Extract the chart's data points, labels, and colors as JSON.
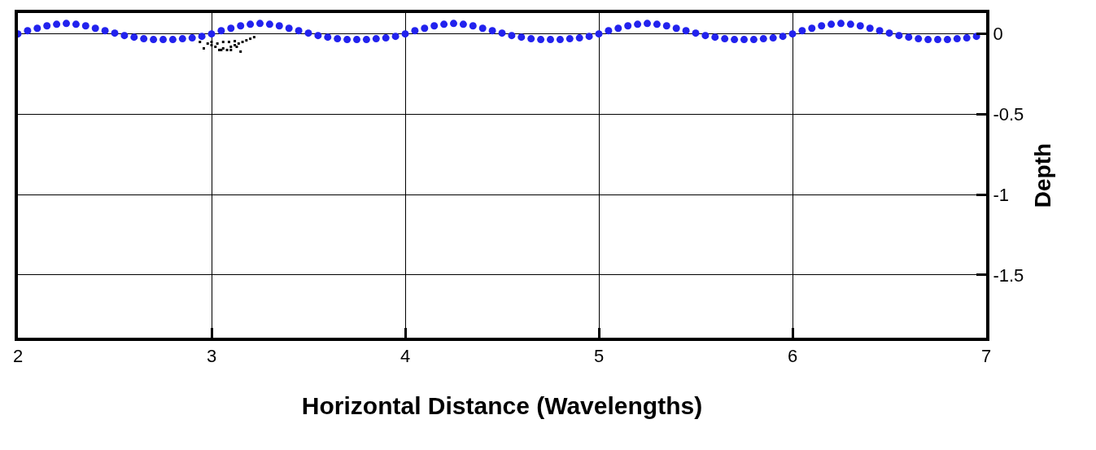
{
  "chart_data": {
    "type": "scatter",
    "xlabel": "Horizontal Distance (Wavelengths)",
    "ylabel": "Depth",
    "xlim": [
      2,
      7
    ],
    "xticks": [
      2,
      3,
      4,
      5,
      6,
      7
    ],
    "ylim": [
      -1.89,
      0.13
    ],
    "yticks": [
      -1.5,
      -1,
      -0.5,
      0
    ],
    "grid": true,
    "marker": "circle",
    "series": [
      {
        "color": "#2222ee",
        "x": [
          2.0,
          2.05,
          2.1,
          2.15,
          2.2,
          2.25,
          2.3,
          2.35,
          2.4,
          2.45,
          2.5,
          2.55,
          2.6,
          2.65,
          2.7,
          2.75,
          2.8,
          2.85,
          2.9,
          2.95,
          3.0,
          3.05,
          3.1,
          3.15,
          3.2,
          3.25,
          3.3,
          3.35,
          3.4,
          3.45,
          3.5,
          3.55,
          3.6,
          3.65,
          3.7,
          3.75,
          3.8,
          3.85,
          3.9,
          3.95,
          4.0,
          4.05,
          4.1,
          4.15,
          4.2,
          4.25,
          4.3,
          4.35,
          4.4,
          4.45,
          4.5,
          4.55,
          4.6,
          4.65,
          4.7,
          4.75,
          4.8,
          4.85,
          4.9,
          4.95,
          5.0,
          5.05,
          5.1,
          5.15,
          5.2,
          5.25,
          5.3,
          5.35,
          5.4,
          5.45,
          5.5,
          5.55,
          5.6,
          5.65,
          5.7,
          5.75,
          5.8,
          5.85,
          5.9,
          5.95,
          6.0,
          6.05,
          6.1,
          6.15,
          6.2,
          6.25,
          6.3,
          6.35,
          6.4,
          6.45,
          6.5,
          6.55,
          6.6,
          6.65,
          6.7,
          6.75,
          6.8,
          6.85,
          6.9,
          6.95
        ],
        "values": [
          0.0,
          0.02,
          0.035,
          0.05,
          0.06,
          0.065,
          0.06,
          0.05,
          0.035,
          0.02,
          0.005,
          -0.01,
          -0.02,
          -0.03,
          -0.035,
          -0.035,
          -0.035,
          -0.03,
          -0.025,
          -0.015,
          0.0,
          0.02,
          0.035,
          0.05,
          0.06,
          0.065,
          0.06,
          0.05,
          0.035,
          0.02,
          0.005,
          -0.01,
          -0.02,
          -0.03,
          -0.035,
          -0.035,
          -0.035,
          -0.03,
          -0.025,
          -0.015,
          0.0,
          0.02,
          0.035,
          0.05,
          0.06,
          0.065,
          0.06,
          0.05,
          0.035,
          0.02,
          0.005,
          -0.01,
          -0.02,
          -0.03,
          -0.035,
          -0.035,
          -0.035,
          -0.03,
          -0.025,
          -0.015,
          0.0,
          0.02,
          0.035,
          0.05,
          0.06,
          0.065,
          0.06,
          0.05,
          0.035,
          0.02,
          0.005,
          -0.01,
          -0.02,
          -0.03,
          -0.035,
          -0.035,
          -0.035,
          -0.03,
          -0.025,
          -0.015,
          0.0,
          0.02,
          0.035,
          0.05,
          0.06,
          0.065,
          0.06,
          0.05,
          0.035,
          0.02,
          0.005,
          -0.01,
          -0.02,
          -0.03,
          -0.035,
          -0.035,
          -0.035,
          -0.03,
          -0.025,
          -0.015
        ]
      },
      {
        "color": "#000000",
        "marker": "square",
        "x": [
          2.94,
          2.96,
          2.98,
          3.0,
          3.02,
          3.04,
          3.06,
          3.08,
          3.1,
          3.12,
          3.14,
          3.16,
          3.18,
          3.0,
          3.03,
          3.06,
          3.09,
          3.12,
          3.15,
          3.05,
          3.1,
          3.13,
          3.2,
          3.22
        ],
        "values": [
          -0.05,
          -0.09,
          -0.06,
          -0.05,
          -0.08,
          -0.1,
          -0.09,
          -0.1,
          -0.08,
          -0.07,
          -0.06,
          -0.05,
          -0.04,
          -0.07,
          -0.06,
          -0.05,
          -0.05,
          -0.045,
          -0.11,
          -0.1,
          -0.1,
          -0.08,
          -0.03,
          -0.02
        ]
      }
    ]
  }
}
